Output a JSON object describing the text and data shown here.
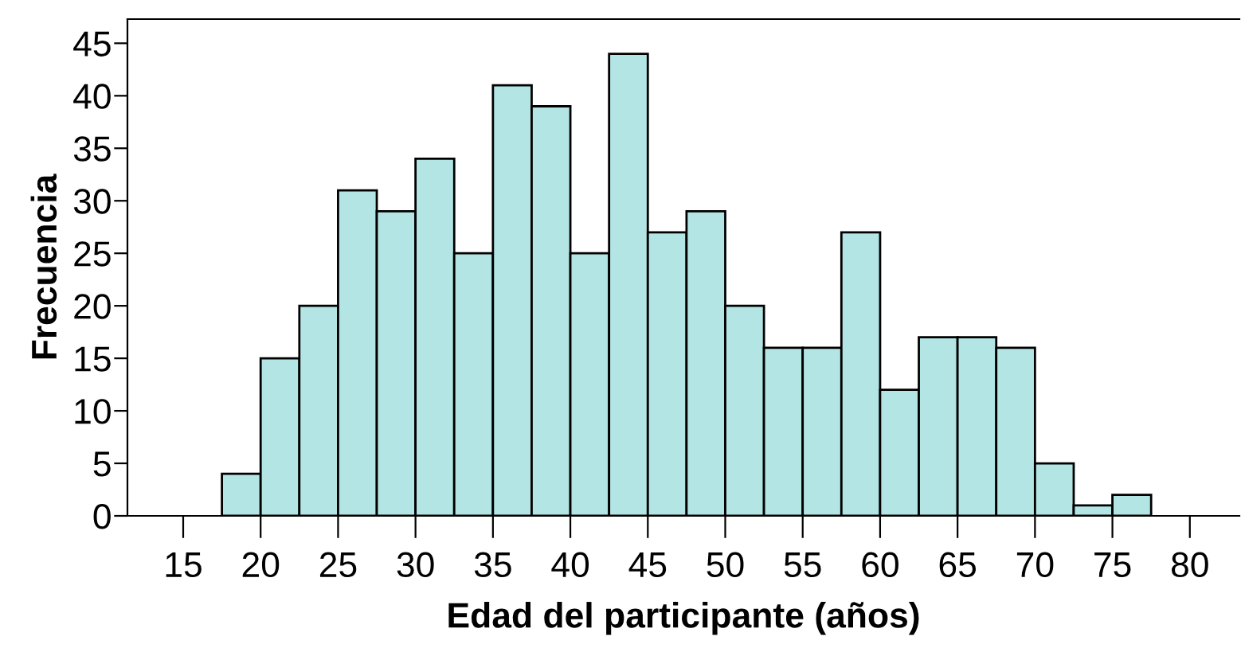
{
  "chart_data": {
    "type": "histogram",
    "xlabel": "Edad del participante (años)",
    "ylabel": "Frecuencia",
    "bins": [
      17.5,
      20,
      22.5,
      25,
      27.5,
      30,
      32.5,
      35,
      37.5,
      40,
      42.5,
      45,
      47.5,
      50,
      52.5,
      55,
      57.5,
      60,
      62.5,
      65,
      67.5,
      70,
      72.5,
      75,
      77.5
    ],
    "values": [
      4,
      15,
      20,
      31,
      29,
      34,
      25,
      41,
      39,
      25,
      44,
      27,
      29,
      20,
      16,
      16,
      27,
      12,
      17,
      17,
      16,
      5,
      1,
      2
    ],
    "color": "#b3e5e5",
    "xlim": [
      11.4,
      83.2
    ],
    "ylim": [
      0,
      47.3
    ],
    "xticks": [
      15,
      20,
      25,
      30,
      35,
      40,
      45,
      50,
      55,
      60,
      65,
      70,
      75,
      80
    ],
    "yticks": [
      0,
      5,
      10,
      15,
      20,
      25,
      30,
      35,
      40,
      45
    ],
    "grid": false
  }
}
